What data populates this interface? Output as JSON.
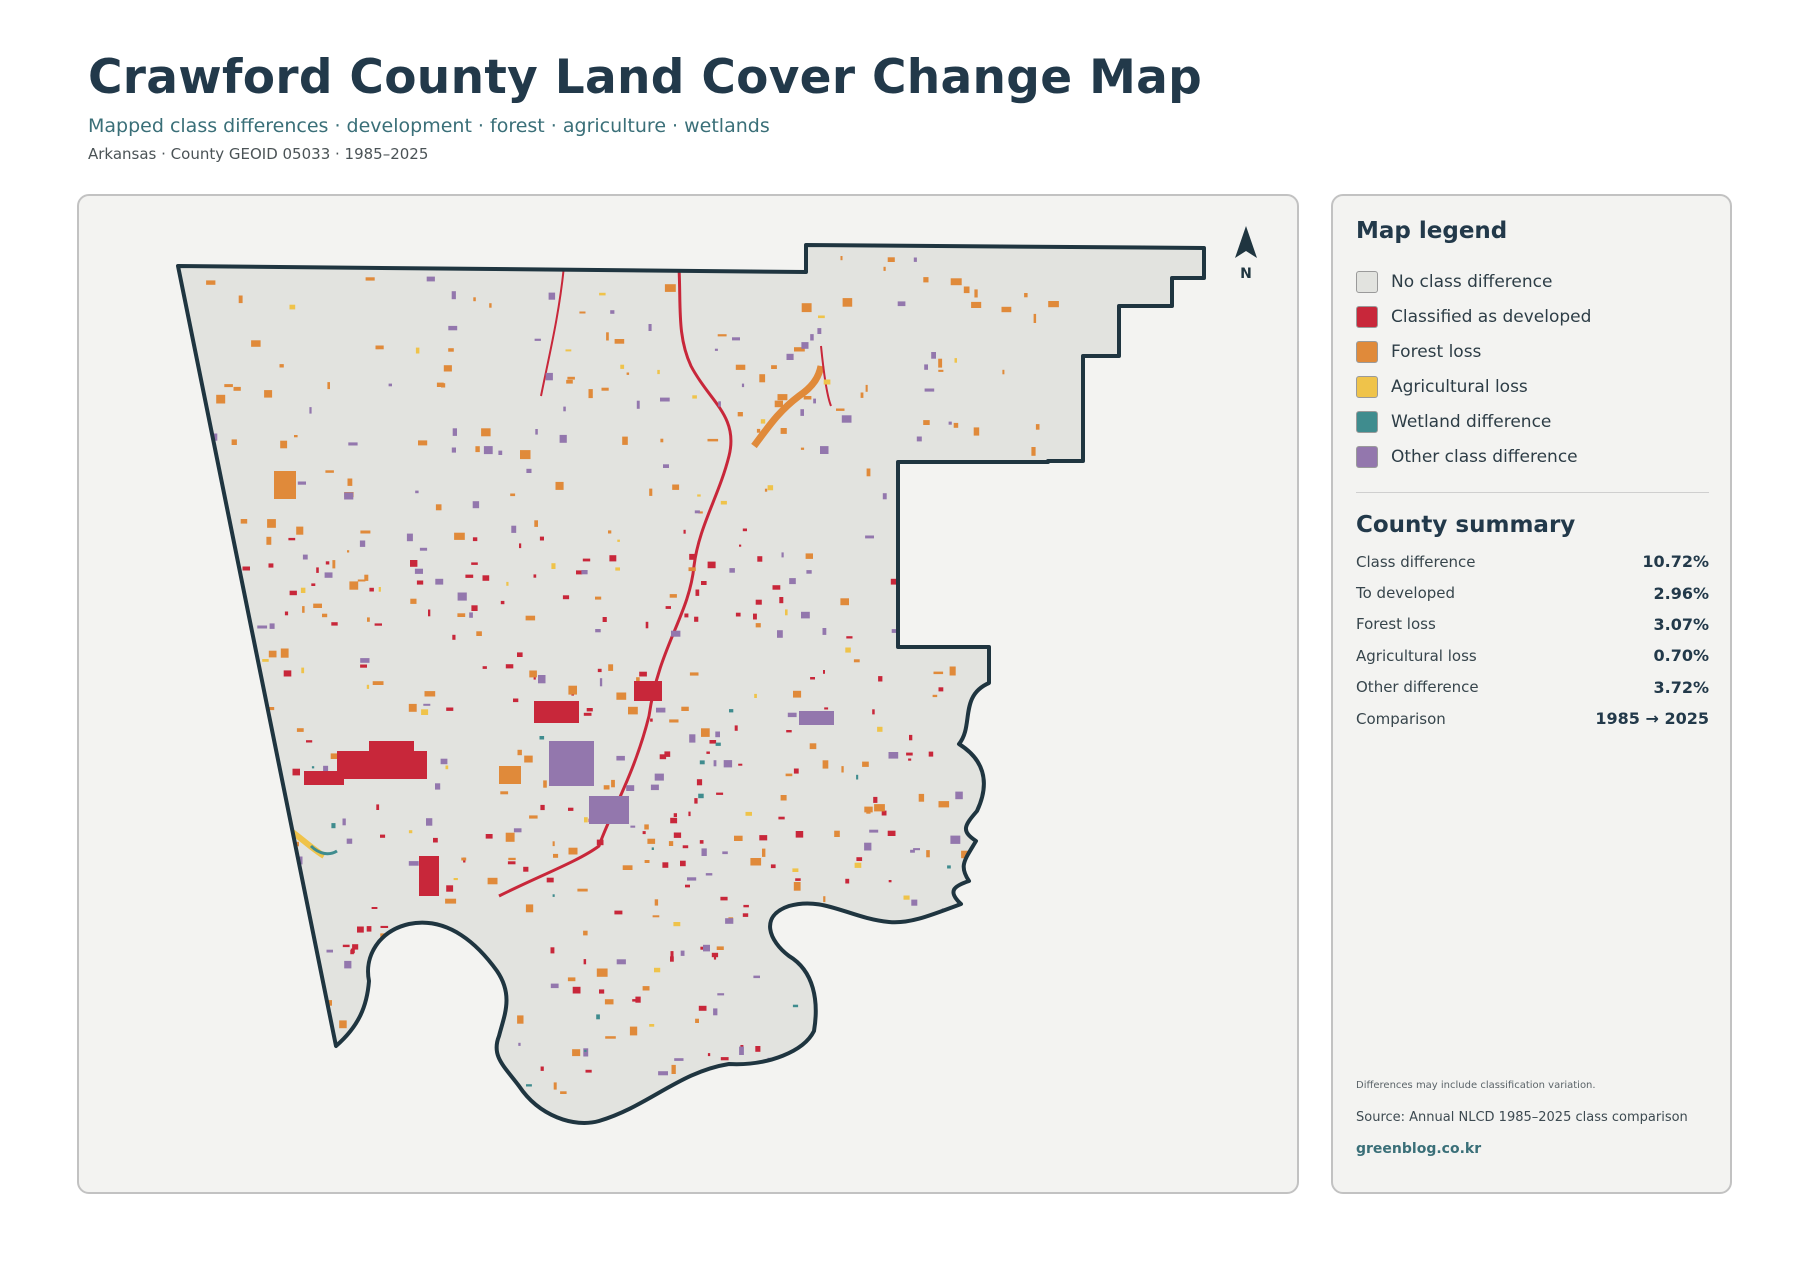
{
  "header": {
    "title": "Crawford County Land Cover Change Map",
    "subtitle": "Mapped class differences · development · forest · agriculture · wetlands",
    "meta": "Arkansas · County GEOID 05033 · 1985–2025"
  },
  "map": {
    "north_label": "N",
    "colors": {
      "background": "#e2e3df",
      "outline": "#1f3540",
      "developed": "#c8273a",
      "forest_loss": "#e08a3a",
      "agricultural_loss": "#efc34a",
      "wetland": "#3f8c8e",
      "other": "#9377ad"
    }
  },
  "legend": {
    "title": "Map legend",
    "items": [
      {
        "label": "No class difference",
        "color": "#e2e3df"
      },
      {
        "label": "Classified as developed",
        "color": "#c8273a"
      },
      {
        "label": "Forest loss",
        "color": "#e08a3a"
      },
      {
        "label": "Agricultural loss",
        "color": "#efc34a"
      },
      {
        "label": "Wetland difference",
        "color": "#3f8c8e"
      },
      {
        "label": "Other class difference",
        "color": "#9377ad"
      }
    ]
  },
  "summary": {
    "title": "County summary",
    "rows": [
      {
        "label": "Class difference",
        "value": "10.72%"
      },
      {
        "label": "To developed",
        "value": "2.96%"
      },
      {
        "label": "Forest loss",
        "value": "3.07%"
      },
      {
        "label": "Agricultural loss",
        "value": "0.70%"
      },
      {
        "label": "Other difference",
        "value": "3.72%"
      },
      {
        "label": "Comparison",
        "value": "1985 → 2025"
      }
    ]
  },
  "footer": {
    "note": "Differences may include classification variation.",
    "source": "Source: Annual NLCD 1985–2025 class comparison",
    "site": "greenblog.co.kr"
  }
}
